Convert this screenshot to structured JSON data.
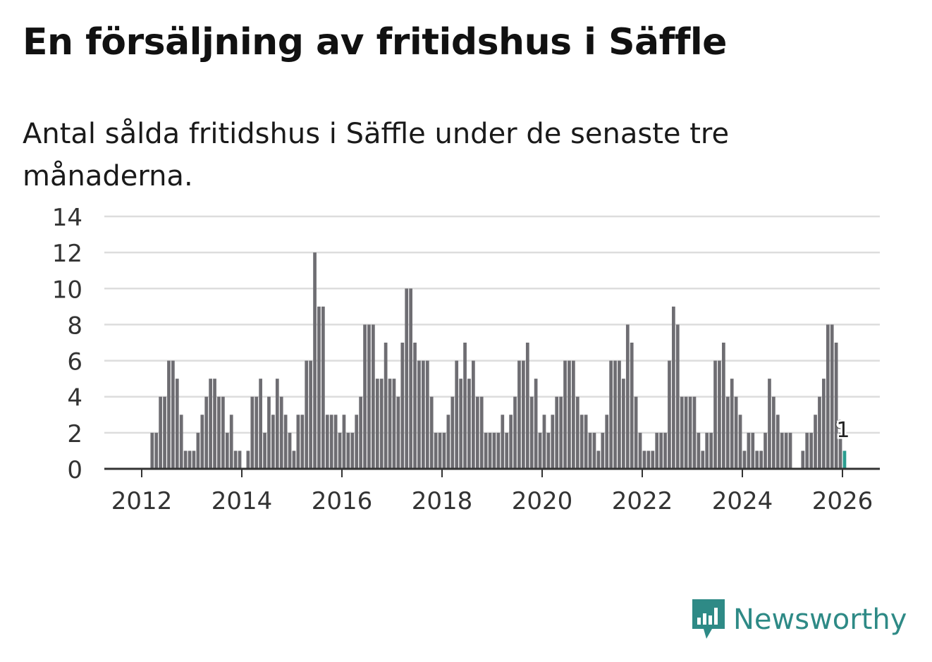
{
  "title": "En försäljning av fritidshus i Säffle",
  "subtitle": "Antal sålda fritidshus i Säffle under de senaste tre månaderna.",
  "brand": {
    "name": "Newsworthy",
    "icon": "newsworthy-logo-icon"
  },
  "colors": {
    "bar": "#6e6d72",
    "highlight": "#2a9d8f",
    "grid": "#dddddd",
    "axis": "#333333",
    "brand": "#2e8a86"
  },
  "chart_data": {
    "type": "bar",
    "title": "En försäljning av fritidshus i Säffle",
    "xlabel": "",
    "ylabel": "",
    "ylim": [
      0,
      14
    ],
    "yticks": [
      0,
      2,
      4,
      6,
      8,
      10,
      12,
      14
    ],
    "xticks": [
      2012,
      2014,
      2016,
      2018,
      2020,
      2022,
      2024,
      2026
    ],
    "xlim": [
      2011.25,
      2026.75
    ],
    "start": {
      "year": 2011,
      "month": 1
    },
    "values": [
      0,
      0,
      0,
      0,
      0,
      0,
      0,
      0,
      0,
      0,
      0,
      0,
      0,
      0,
      2,
      2,
      4,
      4,
      6,
      6,
      5,
      3,
      1,
      1,
      1,
      2,
      3,
      4,
      5,
      5,
      4,
      4,
      2,
      3,
      1,
      1,
      0,
      1,
      4,
      4,
      5,
      2,
      4,
      3,
      5,
      4,
      3,
      2,
      1,
      3,
      3,
      6,
      6,
      12,
      9,
      9,
      3,
      3,
      3,
      2,
      3,
      2,
      2,
      3,
      4,
      8,
      8,
      8,
      5,
      5,
      7,
      5,
      5,
      4,
      7,
      10,
      10,
      7,
      6,
      6,
      6,
      4,
      2,
      2,
      2,
      3,
      4,
      6,
      5,
      7,
      5,
      6,
      4,
      4,
      2,
      2,
      2,
      2,
      3,
      2,
      3,
      4,
      6,
      6,
      7,
      4,
      5,
      2,
      3,
      2,
      3,
      4,
      4,
      6,
      6,
      6,
      4,
      3,
      3,
      2,
      2,
      1,
      2,
      3,
      6,
      6,
      6,
      5,
      8,
      7,
      4,
      2,
      1,
      1,
      1,
      2,
      2,
      2,
      6,
      9,
      8,
      4,
      4,
      4,
      4,
      2,
      1,
      2,
      2,
      6,
      6,
      7,
      4,
      5,
      4,
      3,
      1,
      2,
      2,
      1,
      1,
      2,
      5,
      4,
      3,
      2,
      2,
      2,
      0,
      0,
      1,
      2,
      2,
      3,
      4,
      5,
      8,
      8,
      7,
      2,
      1
    ],
    "highlight_label": "1"
  }
}
